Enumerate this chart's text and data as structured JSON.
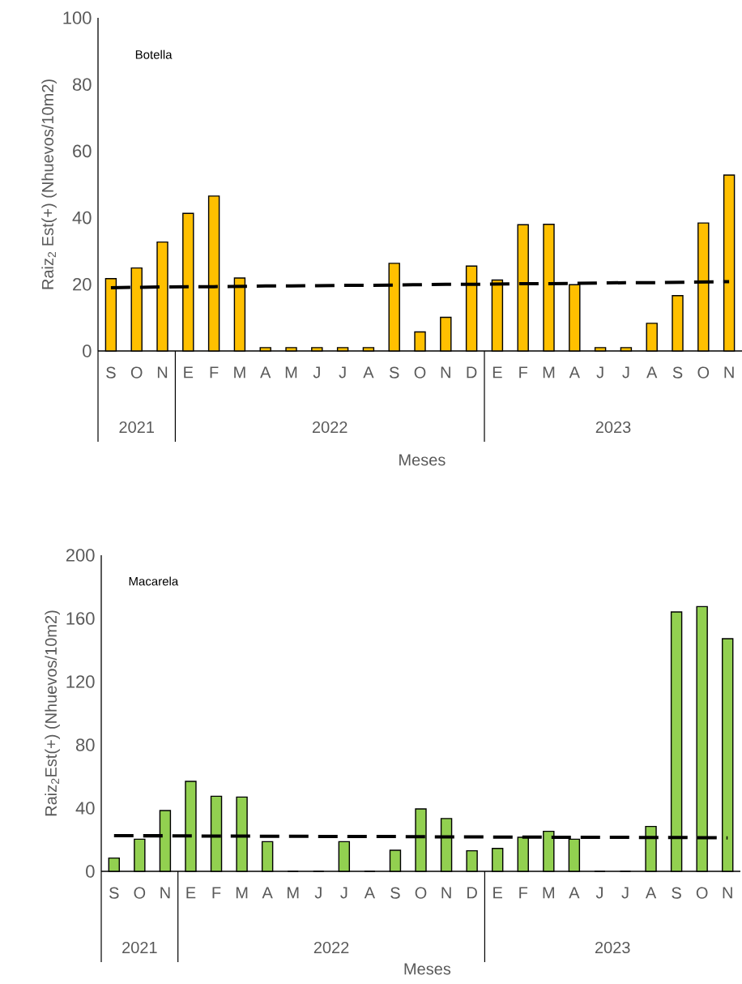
{
  "chart_data": [
    {
      "type": "bar",
      "title": "Botella",
      "xlabel": "Meses",
      "ylabel": "Raiz$_{2}$ Est(+)  (Nhuevos/10m2)",
      "categories": [
        "S",
        "O",
        "N",
        "E",
        "F",
        "M",
        "A",
        "M",
        "J",
        "J",
        "A",
        "S",
        "O",
        "N",
        "D",
        "E",
        "F",
        "M",
        "A",
        "J",
        "J",
        "A",
        "S",
        "O",
        "N"
      ],
      "series": [
        {
          "color": "#ffc000",
          "values": [
            21.7,
            24.9,
            32.7,
            41.3,
            46.5,
            21.9,
            1,
            1,
            1,
            1,
            1,
            26.3,
            5.7,
            10.1,
            25.5,
            21.3,
            37.9,
            38.0,
            19.9,
            1,
            1,
            8.3,
            16.6,
            38.4,
            52.8
          ]
        },
        {
          "type": "line",
          "color": "#000000",
          "line_style": "dashed",
          "values": [
            19.0,
            19.1,
            19.2,
            19.3,
            19.3,
            19.4,
            19.5,
            19.5,
            19.6,
            19.7,
            19.7,
            19.8,
            19.9,
            20.0,
            20.0,
            20.1,
            20.2,
            20.2,
            20.3,
            20.4,
            20.5,
            20.5,
            20.6,
            20.7,
            20.8
          ]
        }
      ],
      "ylim": [
        0,
        100
      ],
      "yticks": [
        0,
        20,
        40,
        60,
        80,
        100
      ],
      "annotations": [
        "2021",
        "2022",
        "2023"
      ]
    },
    {
      "type": "bar",
      "title": "Macarela",
      "xlabel": "Meses",
      "ylabel": "Raiz$_{2}$Est(+) (Nhuevos/10m2)",
      "categories": [
        "S",
        "O",
        "N",
        "E",
        "F",
        "M",
        "A",
        "M",
        "J",
        "J",
        "A",
        "S",
        "O",
        "N",
        "D",
        "E",
        "F",
        "M",
        "A",
        "J",
        "J",
        "A",
        "S",
        "O",
        "N"
      ],
      "series": [
        {
          "color": "#92d050",
          "values": [
            8.4,
            20.3,
            38.5,
            56.9,
            47.5,
            47.0,
            18.8,
            0,
            0,
            18.8,
            0,
            13.3,
            39.5,
            33.4,
            13.0,
            14.5,
            21.5,
            25.3,
            20.3,
            0,
            0,
            28.4,
            164.1,
            167.5,
            147.2
          ]
        },
        {
          "type": "line",
          "color": "#000000",
          "line_style": "dashed",
          "values": [
            22.6,
            22.5,
            22.5,
            22.4,
            22.3,
            22.3,
            22.2,
            22.2,
            22.1,
            22.1,
            22.0,
            22.0,
            21.9,
            21.8,
            21.8,
            21.7,
            21.7,
            21.6,
            21.6,
            21.5,
            21.5,
            21.4,
            21.4,
            21.3,
            21.2
          ]
        }
      ],
      "ylim": [
        0,
        200
      ],
      "yticks": [
        0,
        40,
        80,
        120,
        160,
        200
      ],
      "annotations": [
        "2021",
        "2022",
        "2023"
      ]
    }
  ]
}
